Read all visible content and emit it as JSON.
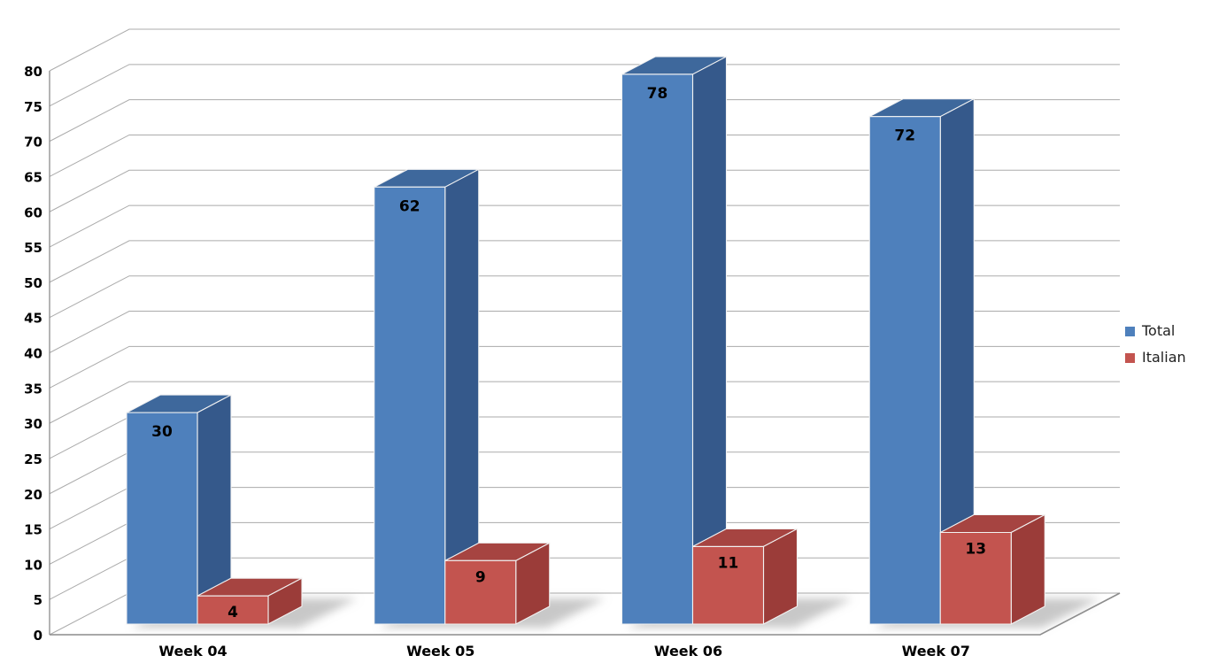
{
  "chart_data": {
    "type": "bar",
    "projection": "3d",
    "title": "",
    "xlabel": "",
    "ylabel": "",
    "categories": [
      "Week 04",
      "Week 05",
      "Week 06",
      "Week 07"
    ],
    "series": [
      {
        "name": "Total",
        "values": [
          30,
          62,
          78,
          72
        ],
        "color_front": "#4E80BC",
        "color_side": "#35598B",
        "color_top": "#3E689C"
      },
      {
        "name": "Italian",
        "values": [
          4,
          9,
          11,
          13
        ],
        "color_front": "#C3544F",
        "color_side": "#9B3C39",
        "color_top": "#A64441"
      }
    ],
    "data_labels_shown": true,
    "ylim": [
      0,
      80
    ],
    "ytick_step": 5,
    "grid": true,
    "legend_position": "right",
    "colors": {
      "gridline": "#ABABAB",
      "axis_line": "#8C8C8C",
      "tick_label": "#000000",
      "data_label": "#000000",
      "legend_text": "#1F1F1F",
      "background": "#FFFFFF"
    }
  },
  "legend": {
    "items": [
      {
        "label": "Total",
        "swatch": "#4E80BC"
      },
      {
        "label": "Italian",
        "swatch": "#C3544F"
      }
    ]
  }
}
